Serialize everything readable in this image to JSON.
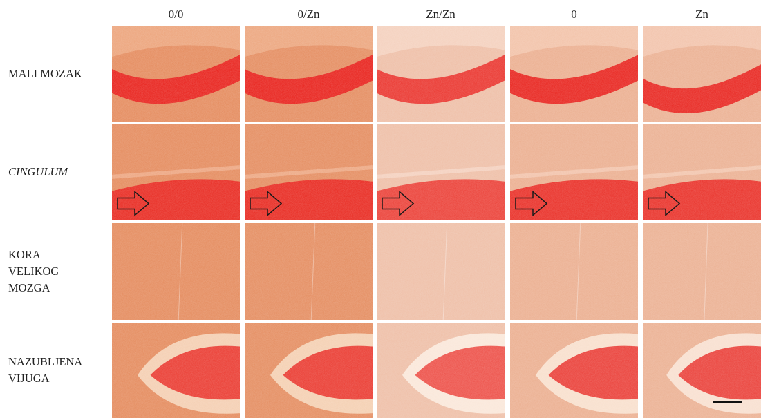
{
  "columns": [
    {
      "label": "0/0",
      "tint": 1.0
    },
    {
      "label": "0/Zn",
      "tint": 0.98
    },
    {
      "label": "Zn/Zn",
      "tint": 0.45
    },
    {
      "label": "0",
      "tint": 0.62
    },
    {
      "label": "Zn",
      "tint": 0.6
    }
  ],
  "rows": [
    {
      "label_lines": [
        "MALI MOZAK"
      ],
      "italic": false,
      "tissue": "cerebellum"
    },
    {
      "label_lines": [
        "CINGULUM"
      ],
      "italic": true,
      "tissue": "cingulum",
      "has_arrow": true
    },
    {
      "label_lines": [
        "KORA",
        "VELIKOG",
        "MOZGA"
      ],
      "italic": false,
      "tissue": "cortex"
    },
    {
      "label_lines": [
        "NAZUBLJENA",
        "VIJUGA"
      ],
      "italic": false,
      "tissue": "dentate"
    }
  ],
  "colors": {
    "stain_red": "#e8201a",
    "tissue_orange": "#e48a5c",
    "tissue_pale": "#f6e8e2",
    "arrow_stroke": "#1a1a1a"
  },
  "icons": {
    "arrow": "right-arrow-outline-icon",
    "scale": "scale-bar"
  }
}
